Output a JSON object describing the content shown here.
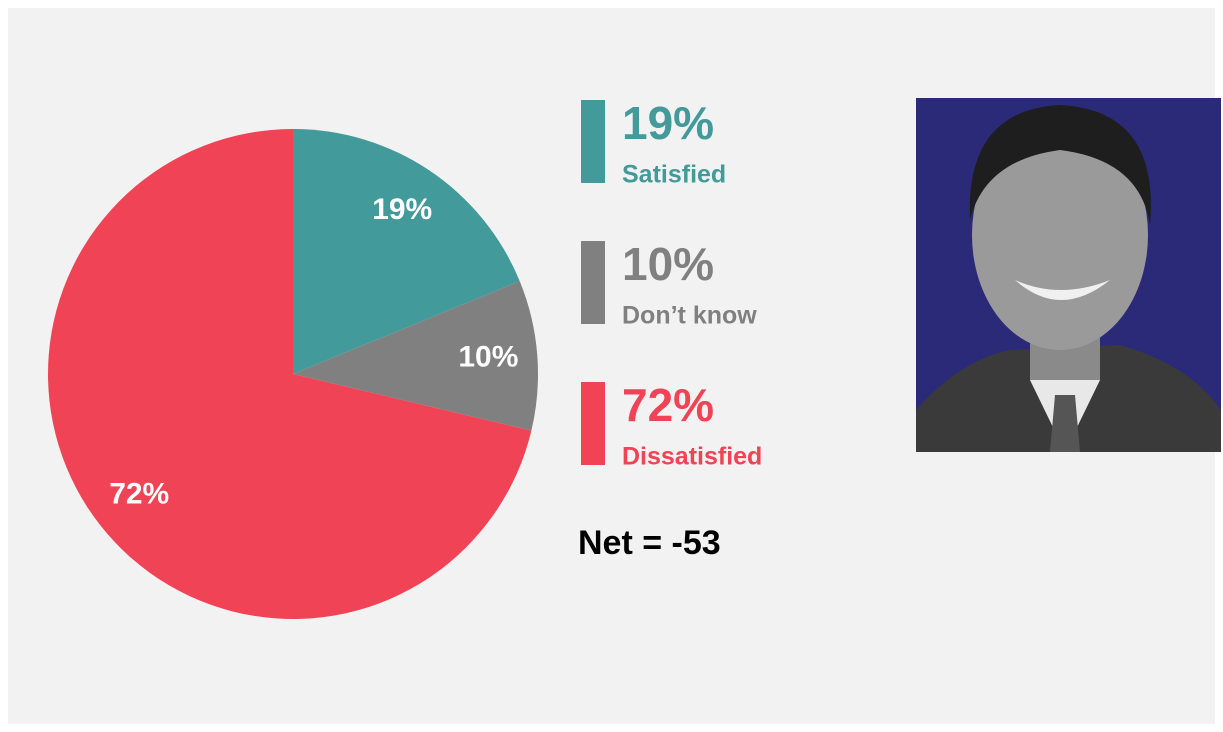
{
  "chart_data": {
    "type": "pie",
    "categories": [
      "Satisfied",
      "Don’t know",
      "Dissatisfied"
    ],
    "values": [
      19,
      10,
      72
    ],
    "value_labels": [
      "19%",
      "10%",
      "72%"
    ],
    "colors": [
      "#429a9a",
      "#808080",
      "#f04355"
    ],
    "annotations": [
      "Net = -53"
    ]
  }
}
